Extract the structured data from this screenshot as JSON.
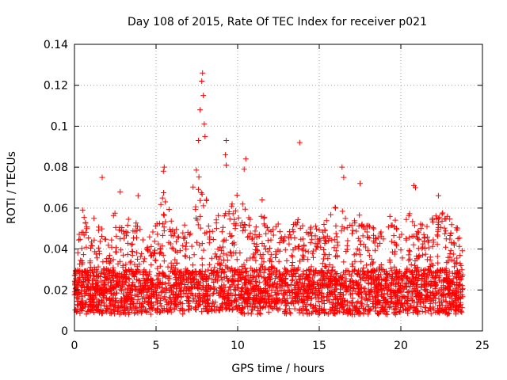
{
  "chart_data": {
    "type": "scatter",
    "title": "Day 108 of 2015, Rate Of TEC Index for receiver p021",
    "xlabel": "GPS time / hours",
    "ylabel": "ROTI / TECUs",
    "xlim": [
      0,
      25
    ],
    "ylim": [
      0,
      0.14
    ],
    "x_ticks": [
      0,
      5,
      10,
      15,
      20,
      25
    ],
    "x_tick_labels": [
      "0",
      "5",
      "10",
      "15",
      "20",
      "25"
    ],
    "y_ticks": [
      0,
      0.02,
      0.04,
      0.06,
      0.08,
      0.1,
      0.12,
      0.14
    ],
    "y_tick_labels": [
      "0",
      "0.02",
      "0.04",
      "0.06",
      "0.08",
      "0.1",
      "0.12",
      "0.14"
    ],
    "grid": true,
    "marker": "+",
    "color": "#ff0000",
    "x_data_range": [
      0,
      23.8
    ],
    "baseline_band": [
      0.008,
      0.03
    ],
    "notable_points": [
      {
        "x": 7.85,
        "y": 0.126
      },
      {
        "x": 7.8,
        "y": 0.122
      },
      {
        "x": 7.9,
        "y": 0.115
      },
      {
        "x": 7.7,
        "y": 0.108
      },
      {
        "x": 7.95,
        "y": 0.101
      },
      {
        "x": 8.0,
        "y": 0.095
      },
      {
        "x": 7.6,
        "y": 0.093
      },
      {
        "x": 9.3,
        "y": 0.093
      },
      {
        "x": 9.25,
        "y": 0.086
      },
      {
        "x": 9.3,
        "y": 0.081
      },
      {
        "x": 13.8,
        "y": 0.092
      },
      {
        "x": 10.5,
        "y": 0.084
      },
      {
        "x": 10.4,
        "y": 0.079
      },
      {
        "x": 16.4,
        "y": 0.08
      },
      {
        "x": 16.5,
        "y": 0.075
      },
      {
        "x": 5.5,
        "y": 0.08
      },
      {
        "x": 5.45,
        "y": 0.078
      },
      {
        "x": 1.7,
        "y": 0.075
      },
      {
        "x": 20.8,
        "y": 0.071
      },
      {
        "x": 20.9,
        "y": 0.07
      },
      {
        "x": 17.5,
        "y": 0.072
      },
      {
        "x": 2.8,
        "y": 0.068
      },
      {
        "x": 3.9,
        "y": 0.066
      },
      {
        "x": 22.3,
        "y": 0.066
      },
      {
        "x": 11.5,
        "y": 0.064
      },
      {
        "x": 0.5,
        "y": 0.059
      },
      {
        "x": 1.2,
        "y": 0.055
      },
      {
        "x": 23.5,
        "y": 0.045
      }
    ],
    "envelope": {
      "x": [
        0,
        0.3,
        0.6,
        1.0,
        1.5,
        2.0,
        2.5,
        3.0,
        3.5,
        4.0,
        4.5,
        5.0,
        5.5,
        6.0,
        6.5,
        7.0,
        7.5,
        8.0,
        8.5,
        9.0,
        9.5,
        10.0,
        10.5,
        11.0,
        11.5,
        12.0,
        12.5,
        13.0,
        13.5,
        14.0,
        14.5,
        15.0,
        15.5,
        16.0,
        16.5,
        17.0,
        17.5,
        18.0,
        18.5,
        19.0,
        19.5,
        20.0,
        20.5,
        21.0,
        21.5,
        22.0,
        22.5,
        23.0,
        23.5,
        23.8
      ],
      "y_max": [
        0.03,
        0.048,
        0.056,
        0.044,
        0.052,
        0.048,
        0.062,
        0.052,
        0.058,
        0.05,
        0.046,
        0.056,
        0.07,
        0.054,
        0.046,
        0.06,
        0.08,
        0.066,
        0.058,
        0.056,
        0.06,
        0.068,
        0.062,
        0.05,
        0.058,
        0.05,
        0.054,
        0.046,
        0.056,
        0.052,
        0.054,
        0.05,
        0.056,
        0.062,
        0.058,
        0.054,
        0.06,
        0.054,
        0.05,
        0.052,
        0.058,
        0.048,
        0.058,
        0.05,
        0.056,
        0.06,
        0.058,
        0.056,
        0.05,
        0.04
      ],
      "y_min": [
        0.008,
        0.008,
        0.007,
        0.008,
        0.008,
        0.009,
        0.008,
        0.007,
        0.008,
        0.009,
        0.008,
        0.008,
        0.009,
        0.008,
        0.008,
        0.008,
        0.008,
        0.009,
        0.009,
        0.01,
        0.01,
        0.009,
        0.008,
        0.008,
        0.008,
        0.009,
        0.009,
        0.008,
        0.008,
        0.007,
        0.007,
        0.005,
        0.007,
        0.008,
        0.008,
        0.008,
        0.008,
        0.008,
        0.007,
        0.007,
        0.008,
        0.008,
        0.007,
        0.008,
        0.009,
        0.008,
        0.008,
        0.008,
        0.008,
        0.008
      ]
    }
  }
}
